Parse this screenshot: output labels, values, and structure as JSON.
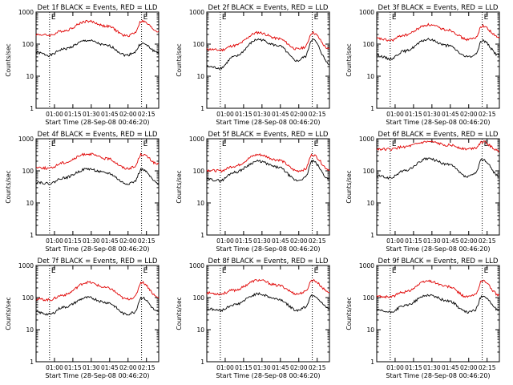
{
  "colors": {
    "events": "#000000",
    "lld": "#e00000",
    "axis": "#000000",
    "marker": "#000000"
  },
  "shared_axes": {
    "ylabel": "Counts/sec",
    "xlabel": "Start Time (28-Sep-08 00:46:20)",
    "x_ticks": [
      "01:00",
      "01:15",
      "01:30",
      "01:45",
      "02:00",
      "02:15"
    ],
    "y_ticks": [
      "1",
      "10",
      "100",
      "1000"
    ],
    "marker_letters": [
      "E",
      "E"
    ]
  },
  "chart_data": [
    {
      "type": "line",
      "title": "Det 1f BLACK = Events, RED = LLD",
      "ylim": [
        1,
        1000
      ],
      "yscale": "log",
      "series": [
        {
          "name": "Events",
          "values": [
            55,
            45,
            70,
            130,
            90,
            45,
            55,
            105,
            55
          ]
        },
        {
          "name": "LLD",
          "values": [
            200,
            190,
            260,
            520,
            360,
            180,
            220,
            520,
            250
          ]
        }
      ]
    },
    {
      "type": "line",
      "title": "Det 2f BLACK = Events, RED = LLD",
      "ylim": [
        1,
        1000
      ],
      "yscale": "log",
      "series": [
        {
          "name": "Events",
          "values": [
            20,
            18,
            40,
            140,
            90,
            30,
            40,
            140,
            25
          ]
        },
        {
          "name": "LLD",
          "values": [
            70,
            65,
            90,
            230,
            150,
            70,
            80,
            230,
            70
          ]
        }
      ]
    },
    {
      "type": "line",
      "title": "Det 3f BLACK = Events, RED = LLD",
      "ylim": [
        1,
        1000
      ],
      "yscale": "log",
      "series": [
        {
          "name": "Events",
          "values": [
            45,
            35,
            60,
            140,
            90,
            40,
            45,
            130,
            45
          ]
        },
        {
          "name": "LLD",
          "values": [
            150,
            130,
            190,
            400,
            280,
            140,
            150,
            370,
            160
          ]
        }
      ]
    },
    {
      "type": "line",
      "title": "Det 4f BLACK = Events, RED = LLD",
      "ylim": [
        1,
        1000
      ],
      "yscale": "log",
      "series": [
        {
          "name": "Events",
          "values": [
            45,
            40,
            60,
            115,
            85,
            40,
            45,
            110,
            40
          ]
        },
        {
          "name": "LLD",
          "values": [
            130,
            120,
            180,
            340,
            240,
            120,
            130,
            330,
            160
          ]
        }
      ]
    },
    {
      "type": "line",
      "title": "Det 5f BLACK = Events, RED = LLD",
      "ylim": [
        1,
        1000
      ],
      "yscale": "log",
      "series": [
        {
          "name": "Events",
          "values": [
            55,
            50,
            90,
            200,
            130,
            50,
            60,
            200,
            55
          ]
        },
        {
          "name": "LLD",
          "values": [
            105,
            100,
            140,
            320,
            220,
            100,
            110,
            320,
            110
          ]
        }
      ]
    },
    {
      "type": "line",
      "title": "Det 6f BLACK = Events, RED = LLD",
      "ylim": [
        1,
        1000
      ],
      "yscale": "log",
      "series": [
        {
          "name": "Events",
          "values": [
            70,
            60,
            100,
            240,
            160,
            65,
            80,
            230,
            70
          ]
        },
        {
          "name": "LLD",
          "values": [
            480,
            470,
            560,
            800,
            640,
            480,
            520,
            800,
            420
          ]
        }
      ]
    },
    {
      "type": "line",
      "title": "Det 7f BLACK = Events, RED = LLD",
      "ylim": [
        1,
        1000
      ],
      "yscale": "log",
      "series": [
        {
          "name": "Events",
          "values": [
            35,
            30,
            50,
            100,
            70,
            30,
            35,
            100,
            35
          ]
        },
        {
          "name": "LLD",
          "values": [
            90,
            85,
            120,
            300,
            200,
            90,
            100,
            300,
            100
          ]
        }
      ]
    },
    {
      "type": "line",
      "title": "Det 8f BLACK = Events, RED = LLD",
      "ylim": [
        1,
        1000
      ],
      "yscale": "log",
      "series": [
        {
          "name": "Events",
          "values": [
            45,
            40,
            60,
            130,
            90,
            40,
            50,
            120,
            45
          ]
        },
        {
          "name": "LLD",
          "values": [
            140,
            130,
            170,
            350,
            240,
            130,
            150,
            350,
            150
          ]
        }
      ]
    },
    {
      "type": "line",
      "title": "Det 9f BLACK = Events, RED = LLD",
      "ylim": [
        1,
        1000
      ],
      "yscale": "log",
      "series": [
        {
          "name": "Events",
          "values": [
            40,
            35,
            55,
            120,
            80,
            35,
            40,
            115,
            40
          ]
        },
        {
          "name": "LLD",
          "values": [
            110,
            105,
            150,
            330,
            220,
            105,
            120,
            340,
            120
          ]
        }
      ]
    }
  ]
}
